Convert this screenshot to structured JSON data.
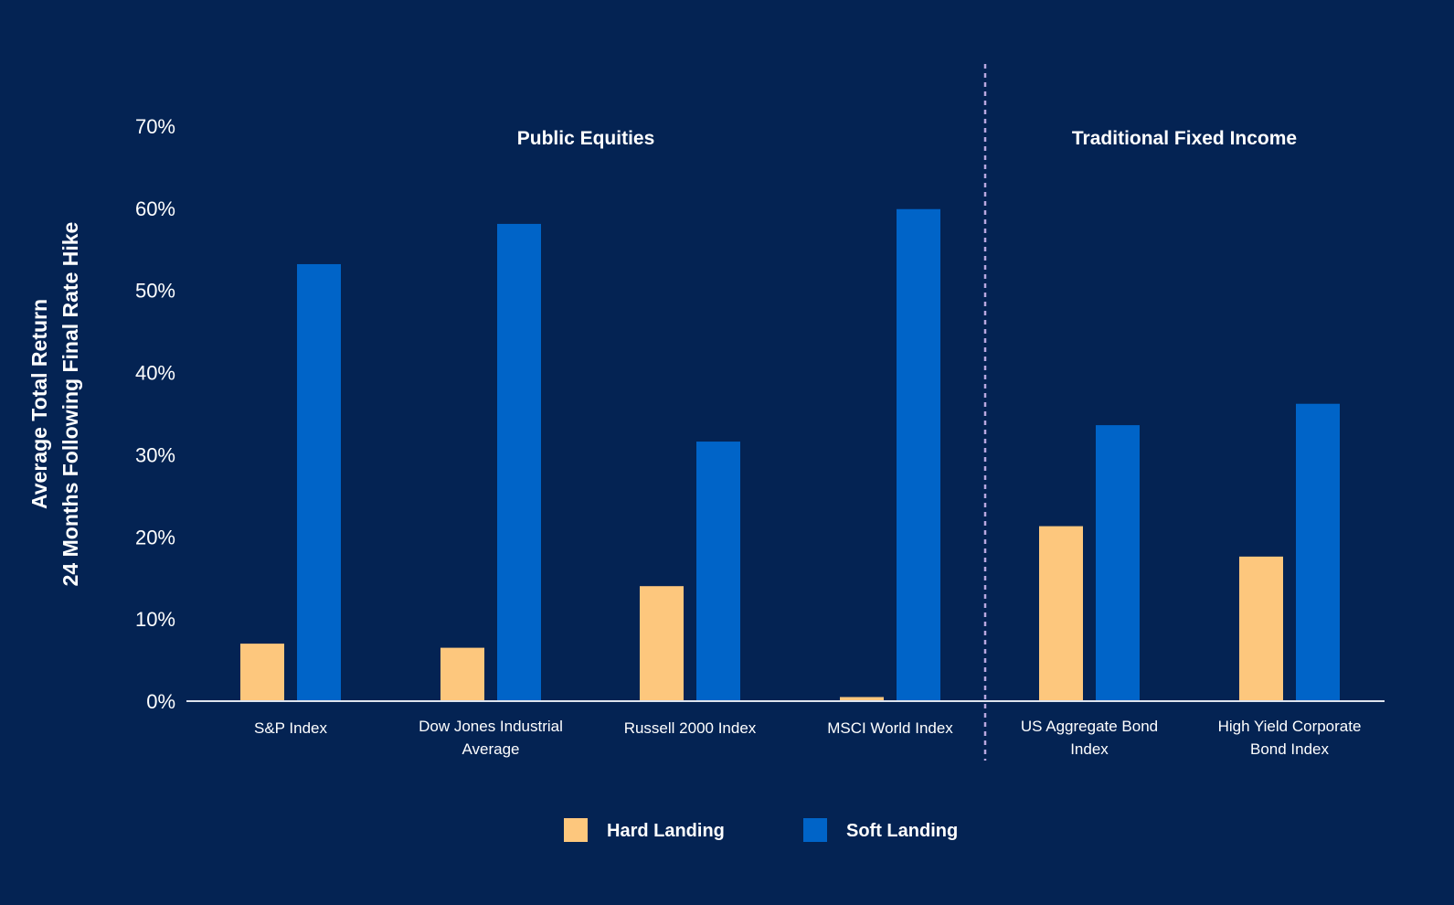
{
  "chart_data": {
    "type": "bar",
    "ylabel_lines": [
      "Average Total Return",
      "24 Months Following Final Rate Hike"
    ],
    "ylim": [
      0,
      70
    ],
    "yticks": [
      0,
      10,
      20,
      30,
      40,
      50,
      60,
      70
    ],
    "ytick_labels": [
      "0%",
      "10%",
      "20%",
      "30%",
      "40%",
      "50%",
      "60%",
      "70%"
    ],
    "grid": false,
    "legend_position": "bottom-center",
    "categories": [
      [
        "S&P Index"
      ],
      [
        "Dow Jones Industrial",
        "Average"
      ],
      [
        "Russell 2000 Index"
      ],
      [
        "MSCI World Index"
      ],
      [
        "US Aggregate Bond",
        "Index"
      ],
      [
        "High Yield Corporate",
        "Bond Index"
      ]
    ],
    "groups": [
      {
        "label": "Public Equities",
        "category_indices": [
          0,
          1,
          2,
          3
        ]
      },
      {
        "label": "Traditional Fixed Income",
        "category_indices": [
          4,
          5
        ]
      }
    ],
    "series": [
      {
        "name": "Hard Landing",
        "color": "#FDC77D",
        "values": [
          7.0,
          6.5,
          14.0,
          0.5,
          21.3,
          17.6
        ]
      },
      {
        "name": "Soft Landing",
        "color": "#0064C8",
        "values": [
          53.2,
          58.1,
          31.6,
          59.9,
          33.6,
          36.2
        ]
      }
    ],
    "colors": {
      "background": "#042353",
      "axis": "#DDE3EE",
      "divider": "#B9A8E0",
      "text": "#FFFFFF"
    }
  }
}
